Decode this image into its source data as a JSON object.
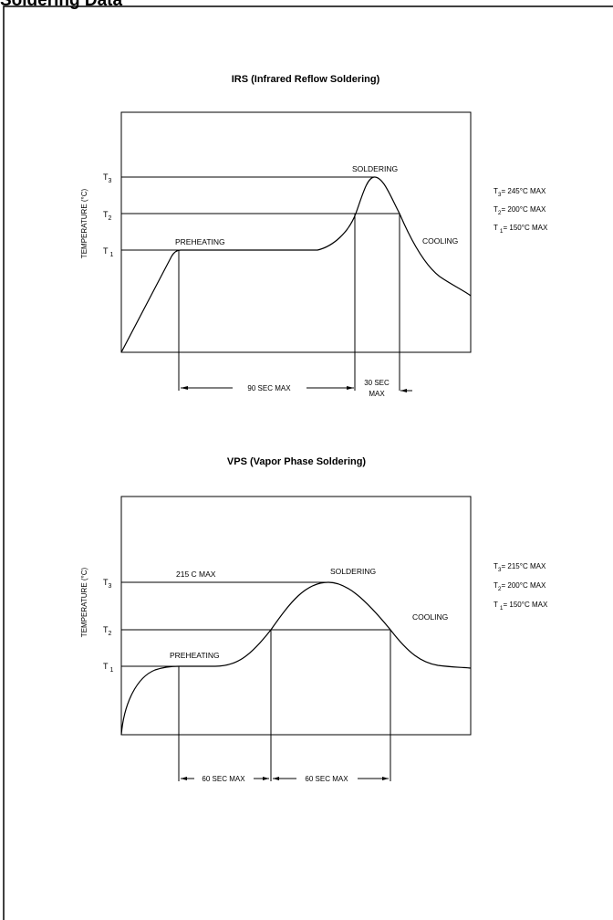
{
  "page": {
    "title": "Soldering Data"
  },
  "irs": {
    "title": "IRS (Infrared Reflow Soldering)",
    "ylabel": "TEMPERATURE (°C)",
    "levels": [
      {
        "label": "T",
        "sub": "3"
      },
      {
        "label": "T",
        "sub": "2"
      },
      {
        "label": "T",
        "sub": "1"
      }
    ],
    "regions": {
      "preheating": "PREHEATING",
      "soldering": "SOLDERING",
      "cooling": "COOLING"
    },
    "durations": [
      {
        "line1": "90 SEC MAX",
        "line2": ""
      },
      {
        "line1": "30 SEC",
        "line2": "MAX"
      }
    ],
    "specs": [
      {
        "t": "T",
        "sub": "3",
        "text": "= 245°C MAX"
      },
      {
        "t": "T",
        "sub": "2",
        "text": "= 200°C MAX"
      },
      {
        "t": "T",
        "sub": "1",
        "text": "= 150°C MAX"
      }
    ]
  },
  "vps": {
    "title": "VPS (Vapor Phase Soldering)",
    "ylabel": "TEMPERATURE (°C)",
    "levels": [
      {
        "label": "T",
        "sub": "3"
      },
      {
        "label": "T",
        "sub": "2"
      },
      {
        "label": "T",
        "sub": "1"
      }
    ],
    "regions": {
      "peak_note": "215  C MAX",
      "preheating": "PREHEATING",
      "soldering": "SOLDERING",
      "cooling": "COOLING"
    },
    "durations": [
      {
        "line1": "60 SEC MAX"
      },
      {
        "line1": "60 SEC MAX"
      }
    ],
    "specs": [
      {
        "t": "T",
        "sub": "3",
        "text": "= 215°C MAX"
      },
      {
        "t": "T",
        "sub": "2",
        "text": "= 200°C MAX"
      },
      {
        "t": "T",
        "sub": "1",
        "text": "= 150°C MAX"
      }
    ]
  }
}
